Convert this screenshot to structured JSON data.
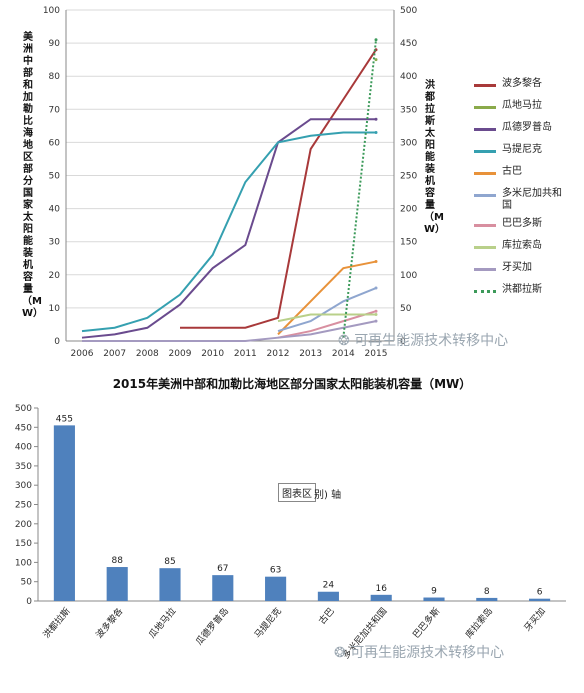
{
  "chart_data": [
    {
      "type": "line",
      "title": "",
      "ylabel": "美洲中部和加勒比海地区部分国家太阳能装机容量（MW）",
      "y2label": "洪都拉斯太阳能装机容量（MW）",
      "xlabel": "",
      "x": [
        "2006",
        "2007",
        "2008",
        "2009",
        "2010",
        "2011",
        "2012",
        "2013",
        "2014",
        "2015"
      ],
      "ylim": [
        0,
        100
      ],
      "yticks": [
        0,
        10,
        20,
        30,
        40,
        50,
        60,
        70,
        80,
        90,
        100
      ],
      "y2lim": [
        0,
        500
      ],
      "y2ticks": [
        0,
        50,
        100,
        150,
        200,
        250,
        300,
        350,
        400,
        450,
        500
      ],
      "series": [
        {
          "name": "波多黎各",
          "color": "#a8393a",
          "axis": "left",
          "values": [
            null,
            null,
            null,
            4,
            4,
            4,
            7,
            58,
            73,
            88
          ]
        },
        {
          "name": "瓜地马拉",
          "color": "#8aaa4a",
          "axis": "left",
          "values": [
            null,
            null,
            null,
            null,
            null,
            null,
            null,
            null,
            null,
            85
          ]
        },
        {
          "name": "瓜德罗普岛",
          "color": "#6a4b8e",
          "axis": "left",
          "values": [
            1,
            2,
            4,
            11,
            22,
            29,
            60,
            67,
            67,
            67
          ]
        },
        {
          "name": "马提尼克",
          "color": "#35a0b0",
          "axis": "left",
          "values": [
            3,
            4,
            7,
            14,
            26,
            48,
            60,
            62,
            63,
            63
          ]
        },
        {
          "name": "古巴",
          "color": "#e8923a",
          "axis": "left",
          "values": [
            null,
            null,
            null,
            null,
            null,
            null,
            2,
            12,
            22,
            24
          ]
        },
        {
          "name": "多米尼加共和国",
          "color": "#8fa6cf",
          "axis": "left",
          "values": [
            null,
            null,
            null,
            null,
            null,
            null,
            3,
            6,
            12,
            16
          ]
        },
        {
          "name": "巴巴多斯",
          "color": "#d88fa0",
          "axis": "left",
          "values": [
            null,
            null,
            null,
            null,
            null,
            null,
            1,
            3,
            6,
            9
          ]
        },
        {
          "name": "库拉索岛",
          "color": "#b9d08a",
          "axis": "left",
          "values": [
            null,
            null,
            null,
            null,
            null,
            null,
            6,
            8,
            8,
            8
          ]
        },
        {
          "name": "牙买加",
          "color": "#a49ac0",
          "axis": "left",
          "values": [
            0,
            0,
            0,
            0,
            0,
            0,
            1,
            2,
            4,
            6
          ]
        },
        {
          "name": "洪都拉斯",
          "color": "#3c9a5a",
          "axis": "right",
          "dashed": true,
          "values": [
            null,
            null,
            null,
            null,
            null,
            null,
            null,
            null,
            5,
            455
          ]
        }
      ],
      "legend_position": "right"
    },
    {
      "type": "bar",
      "title": "2015年美洲中部和加勒比海地区部分国家太阳能装机容量（MW）",
      "categories": [
        "洪都拉斯",
        "波多黎各",
        "瓜地马拉",
        "瓜德罗普岛",
        "马提尼克",
        "古巴",
        "多米尼加共和国",
        "巴巴多斯",
        "库拉索岛",
        "牙买加"
      ],
      "values": [
        455,
        88,
        85,
        67,
        63,
        24,
        16,
        9,
        8,
        6
      ],
      "ylim": [
        0,
        500
      ],
      "yticks": [
        0,
        50,
        100,
        150,
        200,
        250,
        300,
        350,
        400,
        450,
        500
      ],
      "color": "#4f81bd",
      "xlabel": "",
      "ylabel": ""
    }
  ],
  "overlay": {
    "tooltip_text": "图表区",
    "tooltip_rest": "别) 轴",
    "watermark": "可再生能源技术转移中心"
  }
}
